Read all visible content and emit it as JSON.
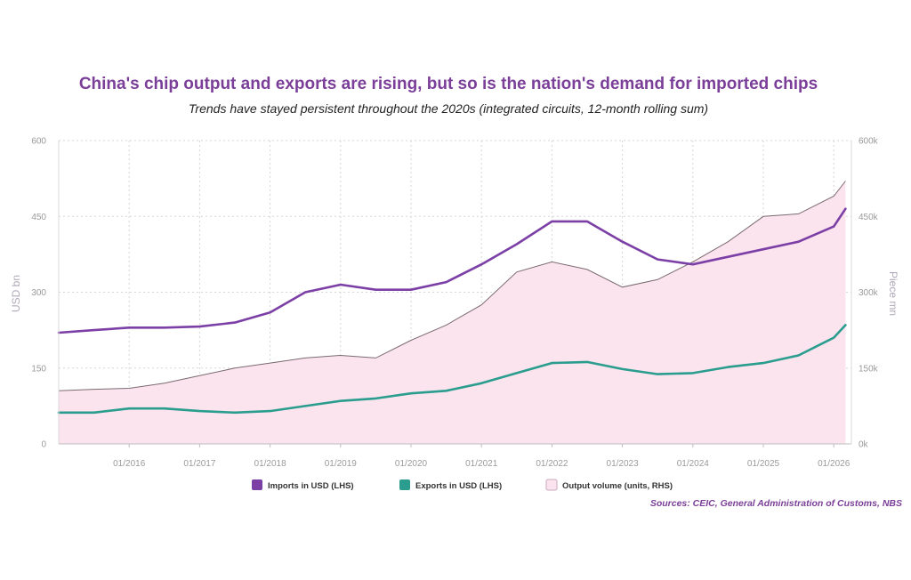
{
  "chart_data": {
    "type": "line",
    "title": "China's chip output and exports are rising, but so is the nation's demand for imported chips",
    "subtitle": "Trends have stayed persistent throughout the 2020s (integrated circuits, 12-month rolling sum)",
    "ylabel": "USD bn",
    "y2label": "Piece mn",
    "ylim": [
      0,
      600
    ],
    "y2lim": [
      0,
      600000
    ],
    "y_ticks": [
      "0",
      "150",
      "300",
      "450",
      "600"
    ],
    "y2_ticks": [
      "0k",
      "150k",
      "300k",
      "450k",
      "600k"
    ],
    "x_ticks": [
      "01/2016",
      "01/2017",
      "01/2018",
      "01/2019",
      "01/2020",
      "01/2021",
      "01/2022",
      "01/2023",
      "01/2024",
      "01/2025",
      "01/2026"
    ],
    "grid": true,
    "legend_position": "bottom",
    "x": [
      "01/2015",
      "07/2015",
      "01/2016",
      "07/2016",
      "01/2017",
      "07/2017",
      "01/2018",
      "07/2018",
      "01/2019",
      "07/2019",
      "01/2020",
      "07/2020",
      "01/2021",
      "07/2021",
      "01/2022",
      "07/2022",
      "01/2023",
      "07/2023",
      "01/2024",
      "07/2024",
      "01/2025",
      "07/2025",
      "01/2026",
      "03/2026"
    ],
    "series": [
      {
        "name": "Imports in USD (LHS)",
        "axis": "left",
        "style": "line",
        "color": "#7b3fa6",
        "values": [
          220,
          225,
          230,
          230,
          232,
          240,
          260,
          300,
          315,
          305,
          305,
          320,
          355,
          395,
          440,
          440,
          400,
          365,
          355,
          370,
          385,
          400,
          430,
          465
        ]
      },
      {
        "name": "Exports in USD (LHS)",
        "axis": "left",
        "style": "line",
        "color": "#2a9d8f",
        "values": [
          62,
          62,
          70,
          70,
          65,
          62,
          65,
          75,
          85,
          90,
          100,
          105,
          120,
          140,
          160,
          162,
          148,
          138,
          140,
          152,
          160,
          175,
          210,
          235
        ]
      },
      {
        "name": "Output volume (units, RHS)",
        "axis": "right",
        "style": "area",
        "color": "#fbe4ee",
        "line_color": "#7a6a70",
        "values": [
          105000,
          108000,
          110000,
          120000,
          135000,
          150000,
          160000,
          170000,
          175000,
          170000,
          205000,
          235000,
          275000,
          340000,
          360000,
          345000,
          310000,
          325000,
          360000,
          400000,
          450000,
          455000,
          490000,
          520000
        ]
      }
    ]
  },
  "source_text": "Sources: CEIC, General Administration of Customs, NBS",
  "colors": {
    "title": "#7b3f99",
    "source": "#7b3f99",
    "grid": "#d6d6d6"
  }
}
